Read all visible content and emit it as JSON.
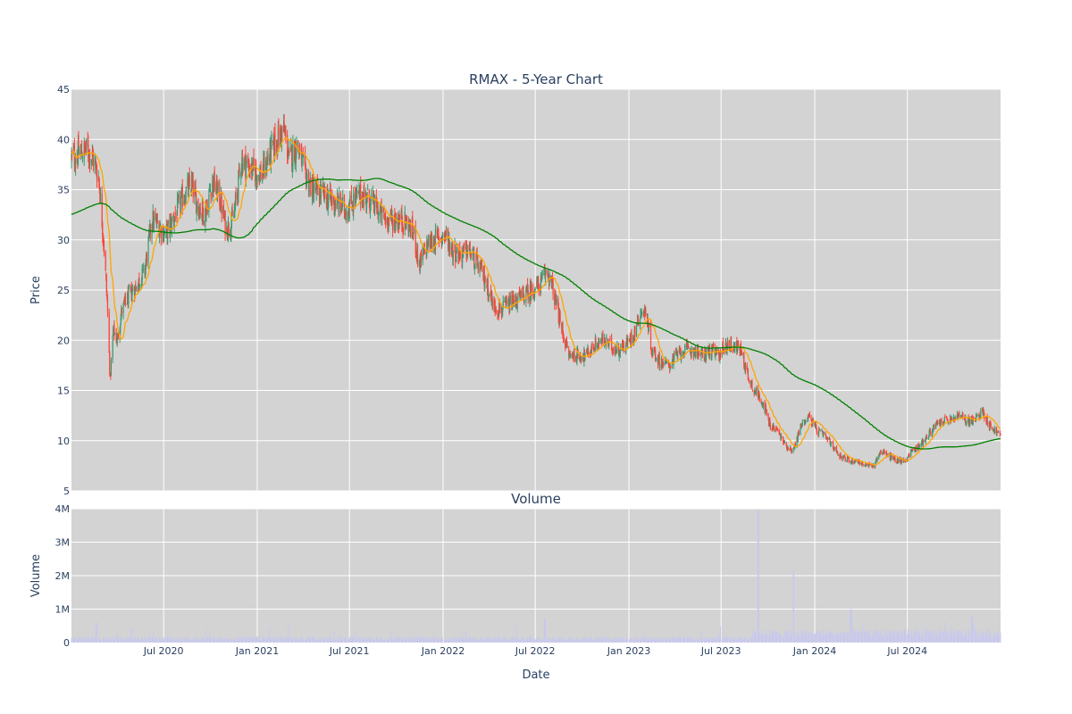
{
  "chart_data": {
    "type": "candlestick",
    "title": "RMAX - 5-Year Chart",
    "price_panel": {
      "ylabel": "Price",
      "ylim": [
        5,
        45
      ],
      "yticks": [
        5,
        10,
        15,
        20,
        25,
        30,
        35,
        40,
        45
      ],
      "xlim": [
        "2020-01-02",
        "2024-12-31"
      ],
      "grid": true,
      "series": [
        {
          "type": "candlestick",
          "up_color": "#3d9970",
          "down_color": "#ff4136"
        },
        {
          "type": "line",
          "color": "#ffa500"
        },
        {
          "type": "line",
          "color": "#008000"
        }
      ],
      "close_anchors": [
        [
          "2020-01-02",
          38.2
        ],
        [
          "2020-01-15",
          38.5
        ],
        [
          "2020-02-01",
          39.0
        ],
        [
          "2020-02-15",
          38.0
        ],
        [
          "2020-02-25",
          36.0
        ],
        [
          "2020-03-05",
          30.0
        ],
        [
          "2020-03-12",
          24.0
        ],
        [
          "2020-03-18",
          16.0
        ],
        [
          "2020-03-24",
          21.0
        ],
        [
          "2020-04-01",
          20.0
        ],
        [
          "2020-04-10",
          23.0
        ],
        [
          "2020-04-25",
          24.5
        ],
        [
          "2020-05-10",
          25.5
        ],
        [
          "2020-05-25",
          27.0
        ],
        [
          "2020-06-08",
          32.0
        ],
        [
          "2020-06-20",
          31.5
        ],
        [
          "2020-07-05",
          30.5
        ],
        [
          "2020-07-20",
          32.0
        ],
        [
          "2020-08-10",
          34.5
        ],
        [
          "2020-08-25",
          35.5
        ],
        [
          "2020-09-05",
          33.5
        ],
        [
          "2020-09-20",
          32.5
        ],
        [
          "2020-10-05",
          36.0
        ],
        [
          "2020-10-20",
          34.0
        ],
        [
          "2020-11-01",
          31.0
        ],
        [
          "2020-11-15",
          32.0
        ],
        [
          "2020-12-01",
          38.0
        ],
        [
          "2020-12-20",
          37.0
        ],
        [
          "2021-01-10",
          36.5
        ],
        [
          "2021-01-25",
          38.5
        ],
        [
          "2021-02-10",
          40.0
        ],
        [
          "2021-02-22",
          41.0
        ],
        [
          "2021-03-05",
          38.0
        ],
        [
          "2021-03-20",
          39.5
        ],
        [
          "2021-04-05",
          36.5
        ],
        [
          "2021-04-20",
          35.0
        ],
        [
          "2021-05-10",
          34.5
        ],
        [
          "2021-05-25",
          34.0
        ],
        [
          "2021-06-10",
          33.5
        ],
        [
          "2021-06-25",
          33.0
        ],
        [
          "2021-07-10",
          34.0
        ],
        [
          "2021-07-25",
          34.5
        ],
        [
          "2021-08-10",
          34.0
        ],
        [
          "2021-08-25",
          33.0
        ],
        [
          "2021-09-10",
          32.0
        ],
        [
          "2021-09-25",
          32.0
        ],
        [
          "2021-10-10",
          32.0
        ],
        [
          "2021-10-25",
          31.5
        ],
        [
          "2021-11-05",
          30.5
        ],
        [
          "2021-11-15",
          27.5
        ],
        [
          "2021-12-01",
          29.5
        ],
        [
          "2021-12-15",
          30.0
        ],
        [
          "2022-01-05",
          30.5
        ],
        [
          "2022-01-20",
          29.0
        ],
        [
          "2022-02-05",
          28.5
        ],
        [
          "2022-02-20",
          29.0
        ],
        [
          "2022-03-10",
          27.5
        ],
        [
          "2022-03-25",
          26.0
        ],
        [
          "2022-04-10",
          23.5
        ],
        [
          "2022-04-25",
          23.0
        ],
        [
          "2022-05-10",
          23.5
        ],
        [
          "2022-05-25",
          24.0
        ],
        [
          "2022-06-10",
          24.5
        ],
        [
          "2022-06-25",
          25.0
        ],
        [
          "2022-07-10",
          25.5
        ],
        [
          "2022-07-25",
          27.0
        ],
        [
          "2022-08-05",
          25.0
        ],
        [
          "2022-08-20",
          21.5
        ],
        [
          "2022-09-05",
          18.5
        ],
        [
          "2022-09-20",
          18.5
        ],
        [
          "2022-10-10",
          18.5
        ],
        [
          "2022-10-25",
          19.5
        ],
        [
          "2022-11-10",
          20.0
        ],
        [
          "2022-11-25",
          19.5
        ],
        [
          "2022-12-10",
          19.0
        ],
        [
          "2022-12-25",
          19.5
        ],
        [
          "2023-01-10",
          20.5
        ],
        [
          "2023-01-25",
          23.0
        ],
        [
          "2023-02-05",
          22.5
        ],
        [
          "2023-02-15",
          19.0
        ],
        [
          "2023-03-01",
          18.0
        ],
        [
          "2023-03-20",
          17.5
        ],
        [
          "2023-04-05",
          18.5
        ],
        [
          "2023-04-20",
          19.0
        ],
        [
          "2023-05-10",
          19.0
        ],
        [
          "2023-05-25",
          18.5
        ],
        [
          "2023-06-10",
          19.0
        ],
        [
          "2023-06-25",
          18.5
        ],
        [
          "2023-07-10",
          19.5
        ],
        [
          "2023-07-25",
          19.5
        ],
        [
          "2023-08-10",
          19.0
        ],
        [
          "2023-08-22",
          16.5
        ],
        [
          "2023-09-05",
          15.0
        ],
        [
          "2023-09-20",
          14.0
        ],
        [
          "2023-10-05",
          11.5
        ],
        [
          "2023-10-20",
          11.0
        ],
        [
          "2023-11-05",
          9.5
        ],
        [
          "2023-11-20",
          9.0
        ],
        [
          "2023-12-05",
          11.5
        ],
        [
          "2023-12-20",
          12.5
        ],
        [
          "2024-01-05",
          11.0
        ],
        [
          "2024-01-20",
          10.5
        ],
        [
          "2024-02-05",
          9.5
        ],
        [
          "2024-02-20",
          8.5
        ],
        [
          "2024-03-10",
          8.0
        ],
        [
          "2024-03-25",
          8.0
        ],
        [
          "2024-04-10",
          7.5
        ],
        [
          "2024-04-25",
          7.5
        ],
        [
          "2024-05-10",
          9.0
        ],
        [
          "2024-05-25",
          8.5
        ],
        [
          "2024-06-10",
          8.0
        ],
        [
          "2024-06-25",
          8.0
        ],
        [
          "2024-07-10",
          9.0
        ],
        [
          "2024-07-25",
          9.5
        ],
        [
          "2024-08-10",
          10.5
        ],
        [
          "2024-08-25",
          11.5
        ],
        [
          "2024-09-10",
          12.0
        ],
        [
          "2024-09-25",
          12.0
        ],
        [
          "2024-10-10",
          12.5
        ],
        [
          "2024-10-25",
          12.0
        ],
        [
          "2024-11-10",
          12.0
        ],
        [
          "2024-11-25",
          13.0
        ],
        [
          "2024-12-10",
          11.5
        ],
        [
          "2024-12-31",
          10.5
        ]
      ]
    },
    "volume_panel": {
      "title": "Volume",
      "ylabel": "Volume",
      "ylim": [
        0,
        4000000
      ],
      "yticks": [
        0,
        1000000,
        2000000,
        3000000,
        4000000
      ],
      "ytick_labels": [
        "0",
        "1M",
        "2M",
        "3M",
        "4M"
      ],
      "color": "#c8c8ee",
      "grid": true,
      "spikes": [
        [
          "2023-09-12",
          3950000
        ],
        [
          "2023-11-20",
          2150000
        ],
        [
          "2024-03-12",
          1000000
        ],
        [
          "2024-11-05",
          800000
        ],
        [
          "2022-07-20",
          720000
        ],
        [
          "2020-02-20",
          600000
        ]
      ]
    },
    "xlabel": "Date",
    "xtick_labels": [
      "Jul 2020",
      "Jan 2021",
      "Jul 2021",
      "Jan 2022",
      "Jul 2022",
      "Jan 2023",
      "Jul 2023",
      "Jan 2024",
      "Jul 2024"
    ],
    "xtick_dates": [
      "2020-07-01",
      "2021-01-01",
      "2021-07-01",
      "2022-01-01",
      "2022-07-01",
      "2023-01-01",
      "2023-07-01",
      "2024-01-01",
      "2024-07-01"
    ]
  }
}
